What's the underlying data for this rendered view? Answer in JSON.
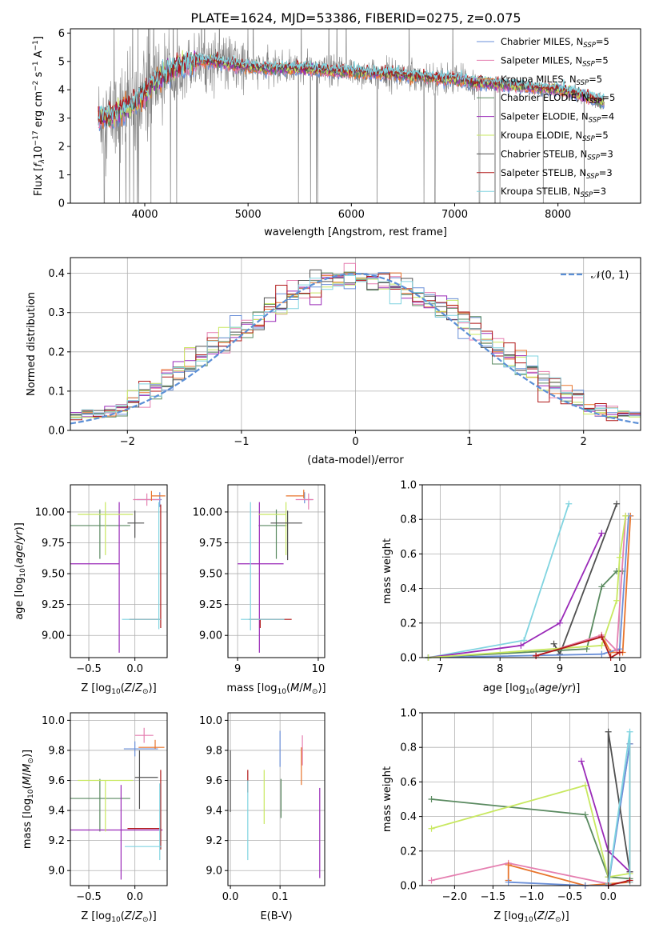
{
  "figure": {
    "title": "PLATE=1624, MJD=53386, FIBERID=0275, z=0.075"
  },
  "colors": {
    "chabrier_miles": "#6a8fd8",
    "salpeter_miles": "#e57fb0",
    "kroupa_miles": "#e8742c",
    "chabrier_elodie": "#5a8a60",
    "salpeter_elodie": "#9a2ab8",
    "kroupa_elodie": "#c8e860",
    "chabrier_stelib": "#505050",
    "salpeter_stelib": "#b01818",
    "kroupa_stelib": "#80d4e0",
    "data": "#808080",
    "normal": "#5b8fd6"
  },
  "chart_data": [
    {
      "id": "spectrum",
      "type": "line",
      "title": "PLATE=1624, MJD=53386, FIBERID=0275, z=0.075",
      "xlabel": "wavelength [Angstrom, rest frame]",
      "ylabel": "Flux [f_λ 10^-17 erg cm^-2 s^-1 A^-1]",
      "xlim": [
        3280,
        8800
      ],
      "ylim": [
        0,
        6.15
      ],
      "xticks": [
        4000,
        5000,
        6000,
        7000,
        8000
      ],
      "yticks": [
        0,
        1,
        2,
        3,
        4,
        5,
        6
      ],
      "legend": {
        "position": "right",
        "entries": [
          "Chabrier MILES, N_SSP=5",
          "Salpeter MILES, N_SSP=5",
          "Kroupa MILES, N_SSP=5",
          "Chabrier ELODIE, N_SSP=5",
          "Salpeter ELODIE, N_SSP=4",
          "Kroupa ELODIE, N_SSP=5",
          "Chabrier STELIB, N_SSP=3",
          "Salpeter STELIB, N_SSP=3",
          "Kroupa STELIB, N_SSP=3"
        ]
      },
      "continuum": {
        "x": [
          3550,
          3700,
          3800,
          3900,
          4000,
          4100,
          4300,
          4500,
          4700,
          4900,
          5200,
          5500,
          5800,
          6100,
          6400,
          6700,
          7000,
          7200,
          7400,
          7600,
          7800,
          8000,
          8200,
          8400
        ],
        "y": [
          3.0,
          3.1,
          3.3,
          3.5,
          3.9,
          4.3,
          4.8,
          5.0,
          5.0,
          4.85,
          4.75,
          4.75,
          4.65,
          4.6,
          4.55,
          4.45,
          4.35,
          4.25,
          4.2,
          4.15,
          4.05,
          4.0,
          3.85,
          3.6
        ]
      }
    },
    {
      "id": "residuals",
      "type": "histogram",
      "xlabel": "(data-model)/error",
      "ylabel": "Normed distribution",
      "xlim": [
        -2.5,
        2.5
      ],
      "ylim": [
        0,
        0.44
      ],
      "xticks": [
        -2,
        -1,
        0,
        1,
        2
      ],
      "yticks": [
        0.0,
        0.1,
        0.2,
        0.3,
        0.4
      ],
      "legend": {
        "position": "top-right",
        "label": "𝒩(0, 1)"
      },
      "bin_width": 0.1,
      "bin_start": -2.5
    },
    {
      "id": "age_vs_Z",
      "type": "errorbar",
      "xlabel": "Z [log₁₀(Z/Z⊙)]",
      "ylabel": "age  [log₁₀(age/yr)]",
      "xlim": [
        -0.7,
        0.35
      ],
      "ylim": [
        8.82,
        10.22
      ],
      "xticks": [
        -0.5,
        0.0
      ],
      "yticks": [
        9.0,
        9.25,
        9.5,
        9.75,
        10.0
      ],
      "points": [
        {
          "model": "chabrier_miles",
          "x": 0.27,
          "y": 10.1,
          "xerr": [
            0.25,
            0.02
          ],
          "yerr": [
            0.06,
            0.06
          ]
        },
        {
          "model": "salpeter_miles",
          "x": 0.13,
          "y": 10.1,
          "xerr": [
            0.15,
            0.15
          ],
          "yerr": [
            0.05,
            0.05
          ]
        },
        {
          "model": "kroupa_miles",
          "x": 0.18,
          "y": 10.13,
          "xerr": [
            0.0,
            0.15
          ],
          "yerr": [
            0.04,
            0.04
          ]
        },
        {
          "model": "chabrier_elodie",
          "x": -0.38,
          "y": 9.89,
          "xerr": [
            0.32,
            0.33
          ],
          "yerr": [
            0.27,
            0.13
          ]
        },
        {
          "model": "salpeter_elodie",
          "x": -0.17,
          "y": 9.58,
          "xerr": [
            0.53,
            0.0
          ],
          "yerr": [
            0.72,
            0.5
          ]
        },
        {
          "model": "kroupa_elodie",
          "x": -0.32,
          "y": 9.98,
          "xerr": [
            0.3,
            0.3
          ],
          "yerr": [
            0.33,
            0.1
          ]
        },
        {
          "model": "chabrier_stelib",
          "x": 0.0,
          "y": 9.91,
          "xerr": [
            0.08,
            0.1
          ],
          "yerr": [
            0.12,
            0.1
          ]
        },
        {
          "model": "salpeter_stelib",
          "x": 0.28,
          "y": 9.13,
          "xerr": [
            0.34,
            0.0
          ],
          "yerr": [
            0.07,
            0.93
          ]
        },
        {
          "model": "kroupa_stelib",
          "x": 0.26,
          "y": 9.13,
          "xerr": [
            0.4,
            0.02
          ],
          "yerr": [
            0.08,
            0.95
          ]
        }
      ]
    },
    {
      "id": "age_vs_mass",
      "type": "errorbar",
      "xlabel": "mass [log₁₀(M/M⊙)]",
      "ylabel": "",
      "xlim": [
        8.88,
        10.08
      ],
      "ylim": [
        8.82,
        10.22
      ],
      "xticks": [
        9,
        10
      ],
      "yticks": [
        9.0,
        9.25,
        9.5,
        9.75,
        10.0
      ],
      "points": [
        {
          "model": "chabrier_miles",
          "x": 9.83,
          "y": 10.1,
          "xerr": [
            0.0,
            0.1
          ],
          "yerr": [
            0.03,
            0.06
          ]
        },
        {
          "model": "salpeter_miles",
          "x": 9.88,
          "y": 10.1,
          "xerr": [
            0.16,
            0.06
          ],
          "yerr": [
            0.08,
            0.05
          ]
        },
        {
          "model": "kroupa_miles",
          "x": 9.82,
          "y": 10.13,
          "xerr": [
            0.22,
            0.0
          ],
          "yerr": [
            0.02,
            0.05
          ]
        },
        {
          "model": "chabrier_elodie",
          "x": 9.48,
          "y": 9.89,
          "xerr": [
            0.22,
            0.13
          ],
          "yerr": [
            0.27,
            0.13
          ]
        },
        {
          "model": "salpeter_elodie",
          "x": 9.27,
          "y": 9.58,
          "xerr": [
            0.27,
            0.3
          ],
          "yerr": [
            0.72,
            0.5
          ]
        },
        {
          "model": "kroupa_elodie",
          "x": 9.6,
          "y": 9.98,
          "xerr": [
            0.34,
            0.0
          ],
          "yerr": [
            0.33,
            0.1
          ]
        },
        {
          "model": "chabrier_stelib",
          "x": 9.62,
          "y": 9.91,
          "xerr": [
            0.21,
            0.18
          ],
          "yerr": [
            0.3,
            0.1
          ]
        },
        {
          "model": "salpeter_stelib",
          "x": 9.28,
          "y": 9.13,
          "xerr": [
            0.14,
            0.39
          ],
          "yerr": [
            0.07,
            0.0
          ]
        },
        {
          "model": "kroupa_stelib",
          "x": 9.16,
          "y": 9.13,
          "xerr": [
            0.12,
            0.42
          ],
          "yerr": [
            0.09,
            0.95
          ]
        }
      ]
    },
    {
      "id": "weight_vs_age",
      "type": "line",
      "xlabel": "age  [log₁₀(age/yr)]",
      "ylabel": "mass weight",
      "xlim": [
        6.7,
        10.35
      ],
      "ylim": [
        0,
        1.0
      ],
      "xticks": [
        7,
        8,
        9,
        10
      ],
      "yticks": [
        0.0,
        0.2,
        0.4,
        0.6,
        0.8,
        1.0
      ],
      "series": [
        {
          "model": "kroupa_stelib",
          "x": [
            6.8,
            8.4,
            9.15
          ],
          "y": [
            0.0,
            0.1,
            0.89
          ]
        },
        {
          "model": "chabrier_stelib",
          "x": [
            8.9,
            9.0,
            9.95
          ],
          "y": [
            0.08,
            0.02,
            0.89
          ]
        },
        {
          "model": "salpeter_elodie",
          "x": [
            6.8,
            8.35,
            9.0,
            9.7
          ],
          "y": [
            0.0,
            0.07,
            0.2,
            0.72
          ]
        },
        {
          "model": "chabrier_elodie",
          "x": [
            6.8,
            9.45,
            9.7,
            9.95,
            10.05
          ],
          "y": [
            0.0,
            0.05,
            0.41,
            0.5,
            0.5
          ]
        },
        {
          "model": "kroupa_miles",
          "x": [
            8.6,
            9.7,
            9.85,
            10.05,
            10.18
          ],
          "y": [
            0.01,
            0.13,
            0.03,
            0.03,
            0.82
          ]
        },
        {
          "model": "chabrier_miles",
          "x": [
            6.8,
            9.7,
            10.0,
            10.15
          ],
          "y": [
            0.0,
            0.02,
            0.05,
            0.82
          ]
        },
        {
          "model": "salpeter_miles",
          "x": [
            8.6,
            9.7,
            9.95,
            10.1
          ],
          "y": [
            0.01,
            0.13,
            0.04,
            0.82
          ]
        },
        {
          "model": "kroupa_elodie",
          "x": [
            6.8,
            9.7,
            9.95,
            10.0,
            10.1
          ],
          "y": [
            0.0,
            0.07,
            0.33,
            0.58,
            0.82
          ]
        },
        {
          "model": "salpeter_stelib",
          "x": [
            8.6,
            9.7,
            9.85,
            10.0
          ],
          "y": [
            0.01,
            0.12,
            0.0,
            0.03
          ]
        }
      ]
    },
    {
      "id": "mass_vs_Z",
      "type": "errorbar",
      "xlabel": "Z [log₁₀(Z/Z⊙)]",
      "ylabel": "mass [log₁₀(M/M⊙)]",
      "xlim": [
        -0.7,
        0.35
      ],
      "ylim": [
        8.9,
        10.05
      ],
      "xticks": [
        -0.5,
        0.0
      ],
      "yticks": [
        9.0,
        9.2,
        9.4,
        9.6,
        9.8,
        10.0
      ],
      "points": [
        {
          "model": "chabrier_miles",
          "x": 0.0,
          "y": 9.81,
          "xerr": [
            0.12,
            0.25
          ],
          "yerr": [
            0.05,
            0.05
          ]
        },
        {
          "model": "salpeter_miles",
          "x": 0.1,
          "y": 9.9,
          "xerr": [
            0.1,
            0.1
          ],
          "yerr": [
            0.05,
            0.05
          ]
        },
        {
          "model": "kroupa_miles",
          "x": 0.22,
          "y": 9.82,
          "xerr": [
            0.18,
            0.1
          ],
          "yerr": [
            0.01,
            0.05
          ]
        },
        {
          "model": "chabrier_elodie",
          "x": -0.38,
          "y": 9.48,
          "xerr": [
            0.32,
            0.33
          ],
          "yerr": [
            0.22,
            0.13
          ]
        },
        {
          "model": "salpeter_elodie",
          "x": -0.15,
          "y": 9.27,
          "xerr": [
            0.55,
            0.45
          ],
          "yerr": [
            0.33,
            0.3
          ]
        },
        {
          "model": "kroupa_elodie",
          "x": -0.32,
          "y": 9.6,
          "xerr": [
            0.3,
            0.3
          ],
          "yerr": [
            0.34,
            0.0
          ]
        },
        {
          "model": "chabrier_stelib",
          "x": 0.05,
          "y": 9.62,
          "xerr": [
            0.05,
            0.2
          ],
          "yerr": [
            0.21,
            0.18
          ]
        },
        {
          "model": "salpeter_stelib",
          "x": 0.28,
          "y": 9.28,
          "xerr": [
            0.36,
            0.0
          ],
          "yerr": [
            0.14,
            0.39
          ]
        },
        {
          "model": "kroupa_stelib",
          "x": 0.27,
          "y": 9.16,
          "xerr": [
            0.38,
            0.02
          ],
          "yerr": [
            0.09,
            0.42
          ]
        }
      ]
    },
    {
      "id": "mass_vs_ebv",
      "type": "errorbar",
      "xlabel": "E(B-V)",
      "ylabel": "",
      "xlim": [
        -0.005,
        0.19
      ],
      "ylim": [
        8.9,
        10.05
      ],
      "xticks": [
        0.0,
        0.1
      ],
      "yticks": [
        9.0,
        9.2,
        9.4,
        9.6,
        9.8,
        10.0
      ],
      "points": [
        {
          "model": "chabrier_miles",
          "x": 0.1,
          "y": 9.81,
          "xerr": [
            0,
            0
          ],
          "yerr": [
            0.12,
            0.12
          ]
        },
        {
          "model": "salpeter_miles",
          "x": 0.145,
          "y": 9.9,
          "xerr": [
            0,
            0
          ],
          "yerr": [
            0.2,
            0.0
          ]
        },
        {
          "model": "kroupa_miles",
          "x": 0.143,
          "y": 9.82,
          "xerr": [
            0,
            0
          ],
          "yerr": [
            0.25,
            0.0
          ]
        },
        {
          "model": "chabrier_elodie",
          "x": 0.102,
          "y": 9.48,
          "xerr": [
            0,
            0
          ],
          "yerr": [
            0.13,
            0.13
          ]
        },
        {
          "model": "salpeter_elodie",
          "x": 0.18,
          "y": 9.27,
          "xerr": [
            0,
            0
          ],
          "yerr": [
            0.32,
            0.28
          ]
        },
        {
          "model": "kroupa_elodie",
          "x": 0.068,
          "y": 9.48,
          "xerr": [
            0,
            0
          ],
          "yerr": [
            0.17,
            0.19
          ]
        },
        {
          "model": "chabrier_stelib",
          "x": 0.0,
          "y": 9.62,
          "xerr": [
            0,
            0
          ],
          "yerr": [
            0.23,
            0.18
          ]
        },
        {
          "model": "salpeter_stelib",
          "x": 0.035,
          "y": 9.62,
          "xerr": [
            0,
            0
          ],
          "yerr": [
            0.1,
            0.05
          ]
        },
        {
          "model": "kroupa_stelib",
          "x": 0.035,
          "y": 9.33,
          "xerr": [
            0,
            0
          ],
          "yerr": [
            0.26,
            0.27
          ]
        }
      ]
    },
    {
      "id": "weight_vs_Z",
      "type": "line",
      "xlabel": "Z [log₁₀(Z/Z⊙)]",
      "ylabel": "mass weight",
      "xlim": [
        -2.42,
        0.42
      ],
      "ylim": [
        0,
        1.0
      ],
      "xticks": [
        -2.0,
        -1.5,
        -1.0,
        -0.5,
        0.0
      ],
      "yticks": [
        0.0,
        0.2,
        0.4,
        0.6,
        0.8,
        1.0
      ],
      "series": [
        {
          "model": "chabrier_elodie",
          "x": [
            -2.3,
            -0.3,
            0.0,
            0.28
          ],
          "y": [
            0.5,
            0.41,
            0.05,
            0.04
          ]
        },
        {
          "model": "kroupa_elodie",
          "x": [
            -2.3,
            -0.3,
            0.0,
            0.28
          ],
          "y": [
            0.33,
            0.58,
            0.05,
            0.07
          ]
        },
        {
          "model": "salpeter_miles",
          "x": [
            -2.3,
            -1.3,
            0.0,
            0.28
          ],
          "y": [
            0.03,
            0.13,
            0.01,
            0.82
          ]
        },
        {
          "model": "kroupa_miles",
          "x": [
            -1.3,
            -1.3,
            -0.3,
            0.0,
            0.28,
            0.28
          ],
          "y": [
            0.03,
            0.12,
            0.0,
            0.01,
            0.02,
            0.82
          ]
        },
        {
          "model": "chabrier_miles",
          "x": [
            -1.3,
            -0.3,
            0.0,
            0.28
          ],
          "y": [
            0.02,
            0.0,
            0.0,
            0.82
          ]
        },
        {
          "model": "salpeter_elodie",
          "x": [
            -0.35,
            -0.0,
            0.28
          ],
          "y": [
            0.72,
            0.2,
            0.08
          ]
        },
        {
          "model": "chabrier_stelib",
          "x": [
            0.0,
            0.0,
            0.28
          ],
          "y": [
            0.01,
            0.89,
            0.08
          ]
        },
        {
          "model": "kroupa_stelib",
          "x": [
            0.0,
            0.28,
            0.28
          ],
          "y": [
            0.01,
            0.89,
            0.02
          ]
        },
        {
          "model": "salpeter_stelib",
          "x": [
            0.0,
            0.28
          ],
          "y": [
            0.0,
            0.03
          ]
        }
      ]
    }
  ]
}
